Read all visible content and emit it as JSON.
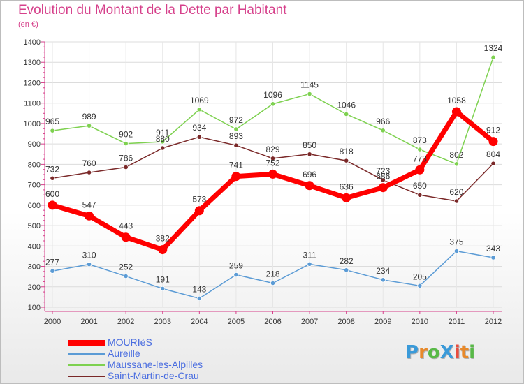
{
  "title": "Evolution du Montant de la Dette par Habitant",
  "subtitle": "(en €)",
  "logo": {
    "text": "ProXiti",
    "letters": [
      "P",
      "r",
      "o",
      "X",
      "i",
      "t",
      "i"
    ],
    "colors": [
      "#3a9ad9",
      "#e8892a",
      "#58b947",
      "#3a9ad9",
      "#e84c3d",
      "#e8892a",
      "#58b947"
    ]
  },
  "chart_data": {
    "type": "line",
    "title": "Evolution du Montant de la Dette par Habitant",
    "ylabel": "(en €)",
    "xlabel": "",
    "x": [
      "2000",
      "2001",
      "2002",
      "2003",
      "2004",
      "2005",
      "2006",
      "2007",
      "2008",
      "2009",
      "2010",
      "2011",
      "2012"
    ],
    "ylim": [
      100,
      1400
    ],
    "yticks": [
      100,
      200,
      300,
      400,
      500,
      600,
      700,
      800,
      900,
      1000,
      1100,
      1200,
      1300,
      1400
    ],
    "grid": true,
    "legend_position": "bottom-left",
    "series": [
      {
        "name": "MOURIèS",
        "color": "#ff0000",
        "values": [
          600,
          547,
          443,
          382,
          573,
          741,
          752,
          696,
          636,
          686,
          773,
          1058,
          912
        ]
      },
      {
        "name": "Aureille",
        "color": "#5b9bd5",
        "values": [
          277,
          310,
          252,
          191,
          143,
          259,
          218,
          311,
          282,
          234,
          205,
          375,
          343
        ]
      },
      {
        "name": "Maussane-les-Alpilles",
        "color": "#7ed150",
        "values": [
          965,
          989,
          902,
          911,
          1069,
          972,
          1096,
          1145,
          1046,
          966,
          873,
          802,
          1324
        ]
      },
      {
        "name": "Saint-Martin-de-Crau",
        "color": "#7a2828",
        "values": [
          732,
          760,
          786,
          880,
          934,
          893,
          829,
          850,
          818,
          723,
          650,
          620,
          804
        ]
      }
    ],
    "data_labels": {
      "MOURIèS": [
        "600",
        "547",
        "443",
        "382",
        "573",
        "741",
        "752",
        "696",
        "636",
        "686",
        "773",
        "1058",
        "912"
      ],
      "Aureille": [
        "277",
        "310",
        "252",
        "191",
        "143",
        "259",
        "218",
        "311",
        "282",
        "234",
        "205",
        "375",
        "343"
      ],
      "Maussane-les-Alpilles": [
        "965",
        "989",
        "902",
        "911",
        "1069",
        "972",
        "1096",
        "1145",
        "1046",
        "966",
        "873",
        "802",
        "1324"
      ],
      "Saint-Martin-de-Crau": [
        "732",
        "760",
        "786",
        "880",
        "934",
        "893",
        "829",
        "850",
        "818",
        "723",
        "650",
        "620",
        "804"
      ]
    }
  }
}
